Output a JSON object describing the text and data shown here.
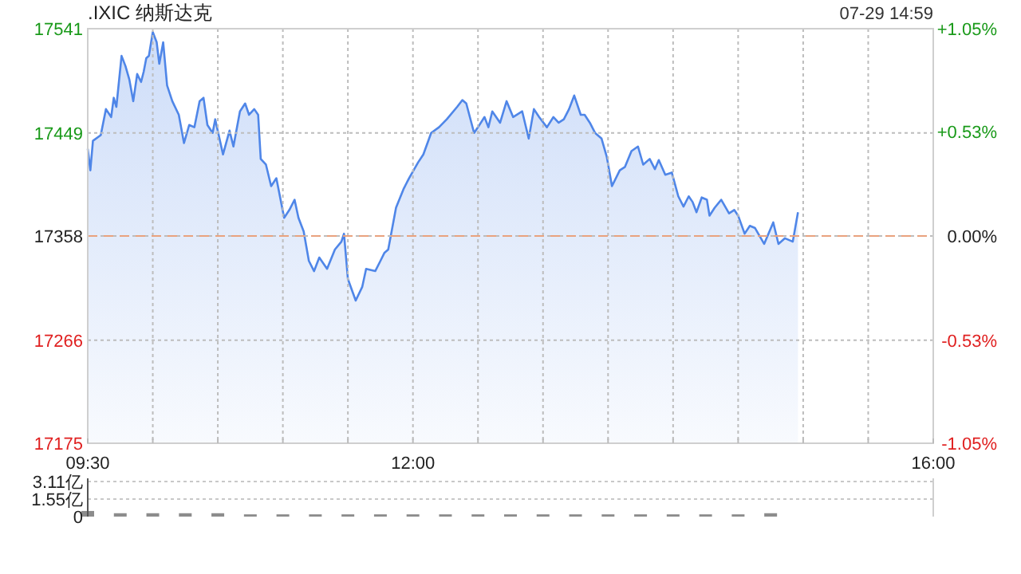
{
  "chart_data": [
    {
      "type": "area",
      "title": ".IXIC 纳斯达克",
      "annotations": [
        "07-29 14:59"
      ],
      "xlim": [
        9.5,
        16
      ],
      "xticks": [
        {
          "value": 9.5,
          "label": "09:30"
        },
        {
          "value": 10,
          "label": null
        },
        {
          "value": 10.5,
          "label": null
        },
        {
          "value": 11,
          "label": null
        },
        {
          "value": 11.5,
          "label": null
        },
        {
          "value": 12,
          "label": "12:00"
        },
        {
          "value": 12.5,
          "label": null
        },
        {
          "value": 13,
          "label": null
        },
        {
          "value": 13.5,
          "label": null
        },
        {
          "value": 14,
          "label": null
        },
        {
          "value": 14.5,
          "label": null
        },
        {
          "value": 15,
          "label": null
        },
        {
          "value": 15.5,
          "label": null
        },
        {
          "value": 16,
          "label": "16:00"
        }
      ],
      "ylim": [
        17175,
        17541
      ],
      "yticks": [
        17175,
        17266,
        17358,
        17449,
        17541
      ],
      "y2lim": [
        -1.05,
        1.05
      ],
      "y2ticks": [
        {
          "value": -1.05,
          "label": "-1.05%"
        },
        {
          "value": -0.53,
          "label": "-0.53%"
        },
        {
          "value": 0,
          "label": "0.00%"
        },
        {
          "value": 0.53,
          "label": "+0.53%"
        },
        {
          "value": 1.05,
          "label": "+1.05%"
        }
      ],
      "grid": true,
      "ref_lines": [
        {
          "axis": "y",
          "value": 17358,
          "color": "#e9a27e",
          "line_style": "dashed"
        }
      ],
      "series": [
        {
          "color": "#4f86e8",
          "x": [
            9.5,
            9.52,
            9.54,
            9.6,
            9.64,
            9.68,
            9.7,
            9.72,
            9.76,
            9.79,
            9.82,
            9.85,
            9.88,
            9.91,
            9.93,
            9.95,
            9.97,
            10.0,
            10.03,
            10.05,
            10.08,
            10.11,
            10.15,
            10.2,
            10.24,
            10.28,
            10.32,
            10.36,
            10.39,
            10.42,
            10.46,
            10.48,
            10.54,
            10.59,
            10.62,
            10.67,
            10.71,
            10.74,
            10.78,
            10.81,
            10.83,
            10.87,
            10.91,
            10.95,
            11.01,
            11.05,
            11.09,
            11.12,
            11.16,
            11.2,
            11.24,
            11.28,
            11.34,
            11.4,
            11.45,
            11.47,
            11.5,
            11.56,
            11.61,
            11.64,
            11.71,
            11.75,
            11.78,
            11.81,
            11.87,
            11.93,
            11.97,
            12.04,
            12.08,
            12.14,
            12.2,
            12.26,
            12.34,
            12.38,
            12.41,
            12.47,
            12.5,
            12.55,
            12.58,
            12.61,
            12.67,
            12.72,
            12.77,
            12.84,
            12.89,
            12.93,
            12.97,
            13.03,
            13.08,
            13.12,
            13.16,
            13.2,
            13.24,
            13.29,
            13.32,
            13.36,
            13.4,
            13.45,
            13.49,
            13.53,
            13.59,
            13.63,
            13.68,
            13.73,
            13.77,
            13.82,
            13.86,
            13.89,
            13.94,
            13.99,
            14.04,
            14.08,
            14.12,
            14.15,
            14.18,
            14.22,
            14.26,
            14.28,
            14.32,
            14.37,
            14.43,
            14.47,
            14.5,
            14.55,
            14.59,
            14.63,
            14.7,
            14.77,
            14.81,
            14.86,
            14.92,
            14.96
          ],
          "values": [
            17435,
            17416,
            17442,
            17447,
            17470,
            17463,
            17480,
            17472,
            17517,
            17508,
            17496,
            17477,
            17501,
            17494,
            17503,
            17515,
            17517,
            17538,
            17529,
            17510,
            17529,
            17491,
            17477,
            17465,
            17440,
            17456,
            17454,
            17477,
            17480,
            17456,
            17449,
            17461,
            17430,
            17451,
            17437,
            17468,
            17475,
            17465,
            17470,
            17465,
            17426,
            17421,
            17402,
            17409,
            17374,
            17381,
            17390,
            17374,
            17362,
            17336,
            17327,
            17339,
            17329,
            17346,
            17353,
            17360,
            17320,
            17301,
            17313,
            17329,
            17327,
            17336,
            17343,
            17346,
            17383,
            17400,
            17409,
            17423,
            17430,
            17449,
            17454,
            17461,
            17472,
            17478,
            17475,
            17449,
            17454,
            17463,
            17454,
            17468,
            17458,
            17477,
            17463,
            17468,
            17444,
            17470,
            17463,
            17454,
            17463,
            17458,
            17461,
            17470,
            17482,
            17465,
            17465,
            17458,
            17449,
            17444,
            17428,
            17402,
            17416,
            17419,
            17433,
            17437,
            17421,
            17426,
            17417,
            17425,
            17412,
            17414,
            17393,
            17384,
            17393,
            17388,
            17379,
            17392,
            17390,
            17376,
            17383,
            17390,
            17378,
            17381,
            17376,
            17360,
            17367,
            17365,
            17351,
            17370,
            17351,
            17356,
            17353,
            17379
          ]
        }
      ]
    },
    {
      "type": "bar",
      "xlim": [
        9.5,
        16
      ],
      "ylim": [
        0,
        3.11
      ],
      "yticks": [
        0,
        {
          "value": 1.55,
          "label": "1.55亿"
        },
        {
          "value": 3.11,
          "label": "3.11亿"
        }
      ],
      "grid": "y",
      "tick_labels": "y",
      "color": "#8c8c8c",
      "x": [
        9.5,
        9.75,
        10,
        10.25,
        10.5,
        10.75,
        11,
        11.25,
        11.5,
        11.75,
        12,
        12.25,
        12.5,
        12.75,
        13,
        13.25,
        13.5,
        13.75,
        14,
        14.25,
        14.5,
        14.75
      ],
      "values": [
        0.5,
        0.3,
        0.3,
        0.3,
        0.3,
        0.2,
        0.2,
        0.2,
        0.2,
        0.2,
        0.2,
        0.2,
        0.2,
        0.2,
        0.2,
        0.2,
        0.2,
        0.2,
        0.2,
        0.2,
        0.2,
        0.3
      ]
    }
  ]
}
